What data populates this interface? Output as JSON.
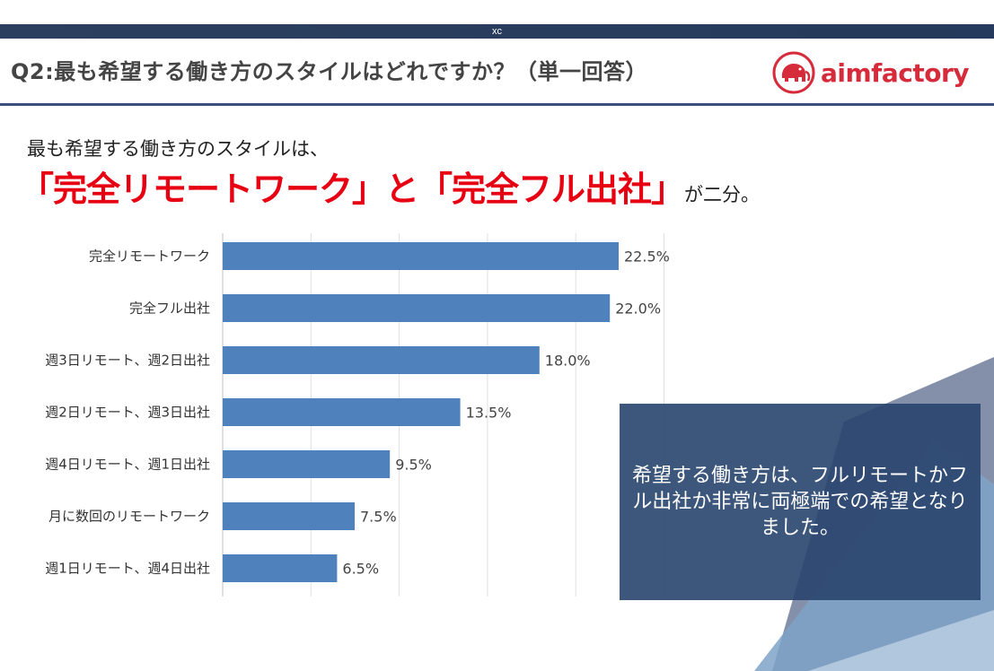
{
  "header": {
    "bar_label": "xc",
    "title": "Q2:最も希望する働き方のスタイルはどれですか？（単一回答）",
    "logo_text": "aimfactory"
  },
  "lead": {
    "line1": "最も希望する働き方のスタイルは、",
    "highlight": "「完全リモートワーク」と「完全フル出社」",
    "tail": "が二分。"
  },
  "callout": {
    "text": "希望する働き方は、フルリモートかフル出社か非常に両極端での希望となりました。"
  },
  "colors": {
    "bar": "#4f81bd",
    "accent_red": "#e60012",
    "header_navy": "#2d3f5e"
  },
  "chart_data": {
    "type": "bar",
    "orientation": "horizontal",
    "categories": [
      "完全リモートワーク",
      "完全フル出社",
      "週3日リモート、週2日出社",
      "週2日リモート、週3日出社",
      "週4日リモート、週1日出社",
      "月に数回のリモートワーク",
      "週1日リモート、週4日出社"
    ],
    "values": [
      22.5,
      22.0,
      18.0,
      13.5,
      9.5,
      7.5,
      6.5
    ],
    "value_labels": [
      "22.5%",
      "22.0%",
      "18.0%",
      "13.5%",
      "9.5%",
      "7.5%",
      "6.5%"
    ],
    "unit": "%",
    "xlim": [
      0,
      25
    ],
    "grid_step": 5,
    "title": "",
    "xlabel": "",
    "ylabel": ""
  }
}
